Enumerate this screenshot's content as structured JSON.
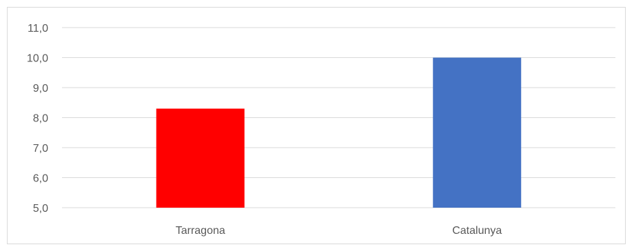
{
  "chart_data": {
    "type": "bar",
    "title": "",
    "xlabel": "",
    "ylabel": "",
    "categories": [
      "Tarragona",
      "Catalunya"
    ],
    "values": [
      8.3,
      10.0
    ],
    "colors": [
      "#ff0000",
      "#4472c4"
    ],
    "ylim": [
      5.0,
      11.0
    ],
    "yticks": [
      "5,0",
      "6,0",
      "7,0",
      "8,0",
      "9,0",
      "10,0",
      "11,0"
    ],
    "grid": true,
    "legend": "none"
  }
}
